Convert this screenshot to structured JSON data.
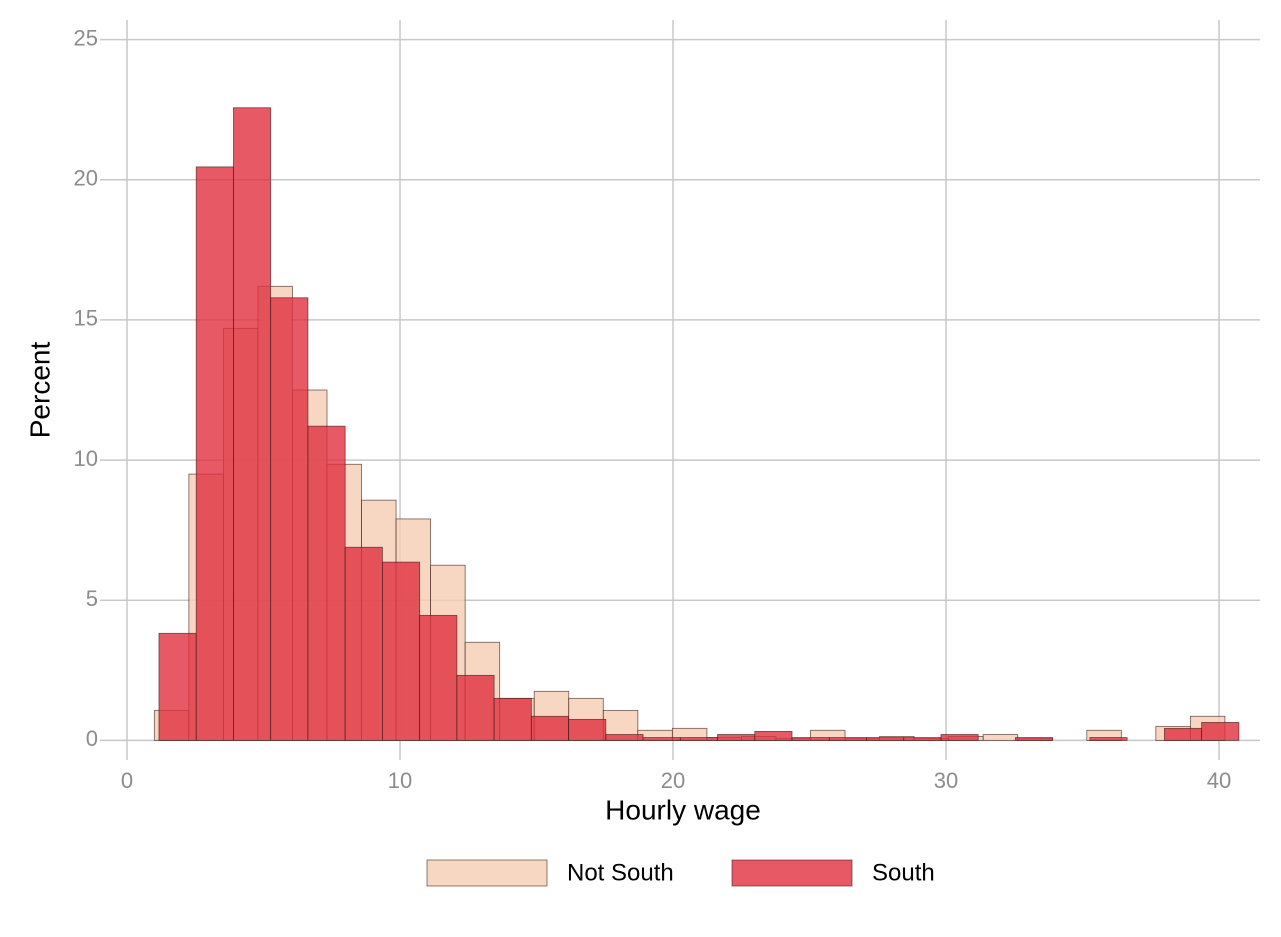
{
  "chart_data": {
    "type": "histogram",
    "x_label": "Hourly wage",
    "y_label": "Percent",
    "xlim": [
      -0.99,
      41.5
    ],
    "ylim": [
      -0.7,
      25.7
    ],
    "xticks": [
      0,
      10,
      20,
      30,
      40
    ],
    "yticks": [
      0,
      5,
      10,
      15,
      20,
      25
    ],
    "grid": true,
    "legend": "bottom",
    "series": [
      {
        "name": "Not South",
        "color": "#f6cdb3",
        "bins": [
          1.0,
          2.265,
          3.53,
          4.795,
          6.06,
          7.325,
          8.59,
          9.855,
          11.12,
          12.385,
          13.65,
          14.915,
          16.18,
          17.445,
          18.71,
          19.975,
          21.24,
          22.505,
          23.77,
          25.035,
          26.3,
          27.565,
          28.83,
          30.095,
          31.36,
          32.625,
          33.89,
          35.155,
          36.42,
          37.685,
          38.95,
          40.215
        ],
        "values": [
          1.07,
          9.5,
          14.7,
          16.2,
          12.5,
          9.85,
          8.57,
          7.9,
          6.25,
          3.5,
          1.5,
          1.75,
          1.5,
          1.07,
          0.36,
          0.43,
          0.1,
          0.14,
          0.07,
          0.36,
          0.07,
          0.14,
          0.07,
          0.14,
          0.21,
          0.07,
          0,
          0.36,
          0,
          0.5,
          0.86
        ]
      },
      {
        "name": "South",
        "color": "#e0303f",
        "bins": [
          1.17,
          2.534,
          3.898,
          5.262,
          6.626,
          7.99,
          9.354,
          10.718,
          12.082,
          13.446,
          14.81,
          16.174,
          17.538,
          18.902,
          20.266,
          21.63,
          22.994,
          24.358,
          25.722,
          27.086,
          28.45,
          29.814,
          31.178,
          32.542,
          33.906,
          35.27,
          36.634,
          37.998,
          39.362,
          40.726
        ],
        "values": [
          3.82,
          20.46,
          22.57,
          15.79,
          11.21,
          6.89,
          6.36,
          4.46,
          2.32,
          1.5,
          0.86,
          0.75,
          0.21,
          0.1,
          0.1,
          0.21,
          0.32,
          0.1,
          0.1,
          0.1,
          0.1,
          0.21,
          0,
          0.1,
          0,
          0.1,
          0,
          0.43,
          0.64
        ]
      }
    ]
  }
}
